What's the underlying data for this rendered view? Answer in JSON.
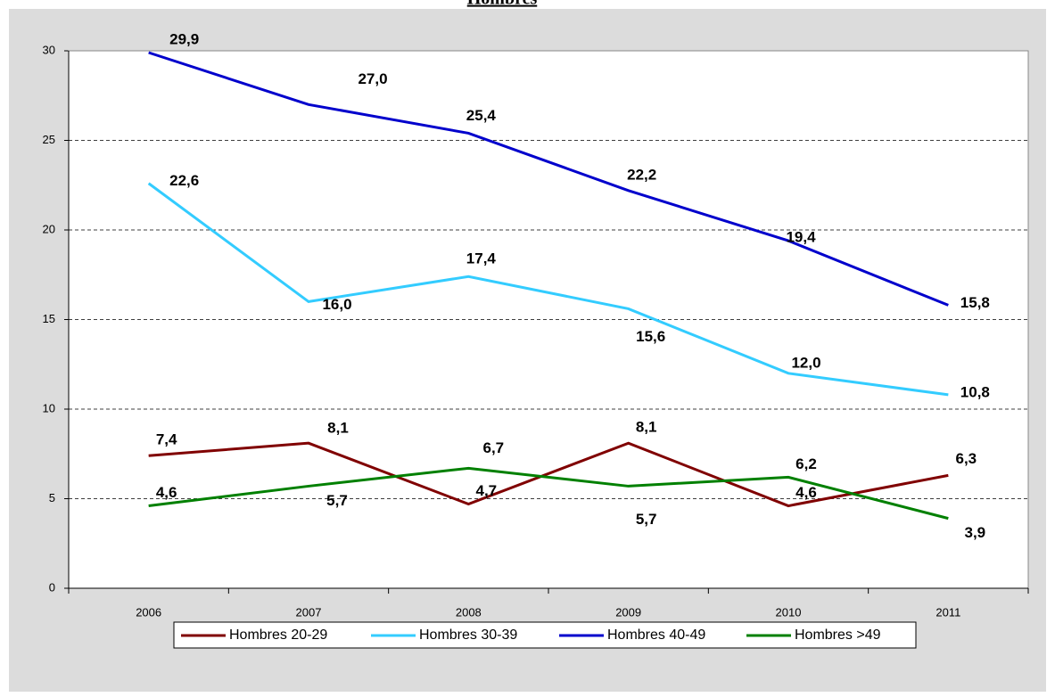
{
  "chart_data": {
    "type": "line",
    "title": "Hombres",
    "categories": [
      "2006",
      "2007",
      "2008",
      "2009",
      "2010",
      "2011"
    ],
    "series": [
      {
        "name": "Hombres 20-29",
        "color": "#800000",
        "values": [
          7.4,
          8.1,
          4.7,
          8.1,
          4.6,
          6.3
        ],
        "value_labels": [
          "7,4",
          "8,1",
          "4,7",
          "8,1",
          "4,6",
          "6,3"
        ]
      },
      {
        "name": "Hombres 30-39",
        "color": "#33ccff",
        "values": [
          22.6,
          16.0,
          17.4,
          15.6,
          12.0,
          10.8
        ],
        "value_labels": [
          "22,6",
          "16,0",
          "17,4",
          "15,6",
          "12,0",
          "10,8"
        ]
      },
      {
        "name": "Hombres 40-49",
        "color": "#0000cc",
        "values": [
          29.9,
          27.0,
          25.4,
          22.2,
          19.4,
          15.8
        ],
        "value_labels": [
          "29,9",
          "27,0",
          "25,4",
          "22,2",
          "19,4",
          "15,8"
        ]
      },
      {
        "name": "Hombres >49",
        "color": "#008000",
        "values": [
          4.6,
          5.7,
          6.7,
          5.7,
          6.2,
          3.9
        ],
        "value_labels": [
          "4,6",
          "5,7",
          "6,7",
          "5,7",
          "6,2",
          "3,9"
        ]
      }
    ],
    "ylim": [
      0,
      30
    ],
    "yticks": [
      0,
      5,
      10,
      15,
      20,
      25,
      30
    ],
    "grid": true,
    "legend": "bottom"
  }
}
